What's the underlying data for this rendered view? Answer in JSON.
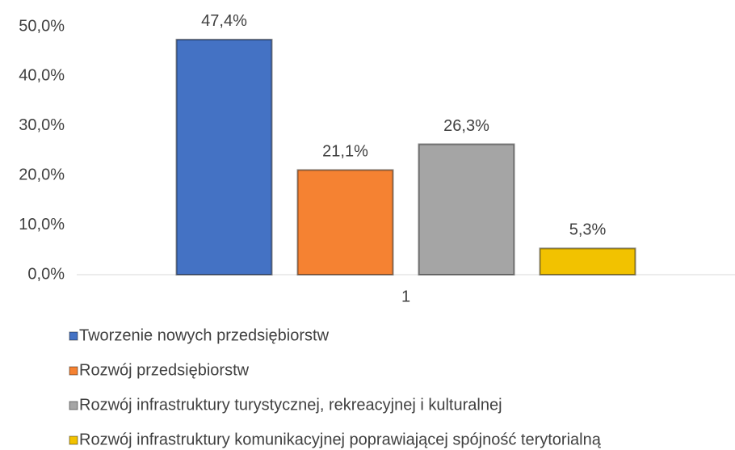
{
  "chart_data": {
    "type": "bar",
    "categories": [
      "1"
    ],
    "series": [
      {
        "name": "Tworzenie nowych przedsiębiorstw",
        "color": "#4472c4",
        "values": [
          47.4
        ],
        "value_labels": [
          "47,4%"
        ]
      },
      {
        "name": "Rozwój przedsiębiorstw",
        "color": "#f58232",
        "values": [
          21.1
        ],
        "value_labels": [
          "21,1%"
        ]
      },
      {
        "name": "Rozwój infrastruktury turystycznej, rekreacyjnej i kulturalnej",
        "color": "#a5a5a5",
        "values": [
          26.3
        ],
        "value_labels": [
          "26,3%"
        ]
      },
      {
        "name": "Rozwój infrastruktury komunikacyjnej poprawiającej spójność terytorialną",
        "color": "#f2c200",
        "values": [
          5.3
        ],
        "value_labels": [
          "5,3%"
        ]
      }
    ],
    "ylim": [
      0,
      50
    ],
    "yticks": [
      {
        "value": 0,
        "label": "0,0%"
      },
      {
        "value": 10,
        "label": "10,0%"
      },
      {
        "value": 20,
        "label": "20,0%"
      },
      {
        "value": 30,
        "label": "30,0%"
      },
      {
        "value": 40,
        "label": "40,0%"
      },
      {
        "value": 50,
        "label": "50,0%"
      }
    ],
    "grid": false,
    "legend": "bottom"
  }
}
